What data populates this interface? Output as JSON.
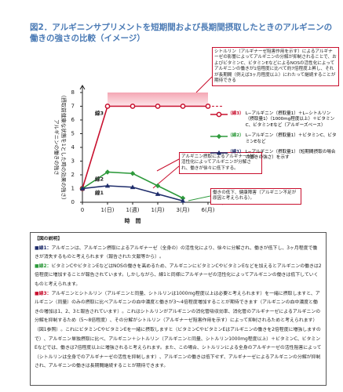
{
  "title": "図2．アルギニンサプリメントを短期間および長期間摂取したときのアルギニンの働きの強さの比較（イメージ）",
  "chart_data": {
    "type": "line",
    "ylabel": [
      "アルギニンの働きの強さ",
      "（摂取前健康な状態を1とした時の効果の強さ）"
    ],
    "xlabel": "時　間",
    "categories": [
      "0",
      "1(日)",
      "1(週)",
      "1(月)",
      "3(月)",
      "6(月)"
    ],
    "ylim": [
      0,
      8
    ],
    "yticks": [
      0,
      1,
      2,
      3,
      4,
      5,
      6,
      7,
      8
    ],
    "series": [
      {
        "name": "L−アルギニン（摂取量1）＋L−シトルリン（摂取量1）（1000mg程度以上）＋ビタミンC、ビタミンEなど（アルギーズベース）",
        "label": "線3",
        "legend_tag": "（線3）",
        "color": "#c8102e",
        "marker": "circle",
        "values": [
          1,
          7,
          7,
          7,
          7,
          7
        ]
      },
      {
        "name": "L−アルギニン（摂取量1）＋ビタミンC、ビタミンEなど",
        "label": "線2",
        "legend_tag": "（線2）",
        "color": "#2e9a3c",
        "marker": "diamond",
        "values": [
          1,
          2.2,
          2.1,
          1.2,
          0.3,
          null
        ]
      },
      {
        "name": "L−アルギニン（摂取量1）（短期間摂取の場合の働きの強さ）を示す",
        "label": "線1",
        "legend_tag": "（線1）",
        "color": "#1f2d6b",
        "marker": "triangle",
        "values": [
          1,
          1.2,
          1.1,
          0.6,
          0.1,
          null
        ]
      }
    ],
    "annotations": {
      "top": "シトルリン（アルギナーゼ阻害作用を示す）によるアルギナーゼの影響によってアルギニンの分解が抑制されることで、およびビタミンC、ビタミンEなどによるNOSの活性化によってアルギニンの働きが1倍程度に比べて約7倍程度上昇し、それが長期間（例えば3ヶ月程度以上）にわたって継続することが期待できる",
      "middle": "アルギニン摂取によるアルギナーゼの活性化によってアルギニンが分解され、働きが徐々に低下する。",
      "bottom": "働きの低下、健康障害（アルギニン不足が原因と考えられる）。"
    }
  },
  "explanation": {
    "heading": "【図の説明】",
    "items": [
      {
        "tag": "■線1：",
        "text": "アルギニンは、アルギニン摂取によるアルギナーゼ（全身の）の活性化により、徐々に分解され、働きが低下し、3ヶ月程度で働きが消失するものと考えられます（報告された文献等から）。"
      },
      {
        "tag": "■線2：",
        "text": "ビタミンCやビタミンEなどはNOSの働きを高めるため、アルギニンにビタミンCやビタミンEなどを加えるとアルギニンの働きは2倍程度に増加することが報告されています。しかしながら、線1と同様にアルギナーゼの活性化によってアルギニンの働きは低下していくものと考えられます。"
      },
      {
        "tag": "■線3：",
        "text": "アルギニンとシトルリン（アルギニンと同量、シトルリンは1000mg程度以上は必要と考えられます）を一緒に摂取しますと、アルギニン（同量）のみの摂取に比べアルギニンの血中濃度と働きが3〜4倍程度増加することが期待できます（アルギニンの血中濃度と働きの増加は1、2、3と報告されています）。これはシトルリンがアルギニンの消化管吸収効率、消化管のアルギナーゼによるアルギニンの分解を抑制するため（5〜8倍程度）、その分解がシトルリン（アルギナーゼ阻害作用を示す）によって抑制されるためと考えられます）（図1参照）。これにビタミンCやビタミンEを一緒に摂取しますと（ビタミンCやビタミンEはアルギニンの働きを2倍程度に増強しますので）、アルギニン単独摂取に比べ、アルギニン＋シトルリン（アルギニンと同量、シトルリン1000mg程度以上）＋ビタミンC、ビタミンEなどでは、働きは7倍程度以上に増強されると考えられます。また、この場合、シトルリンによる全身のアルギナーゼの活性阻害によって（シトルリンは全身でのアルギナーゼの活性を抑制します）、アルギニンの働きは低下せず、アルギナーゼによるアルギニンの分解が抑制され、アルギニンの働きは長期間継続することが期待できます。"
      }
    ]
  }
}
